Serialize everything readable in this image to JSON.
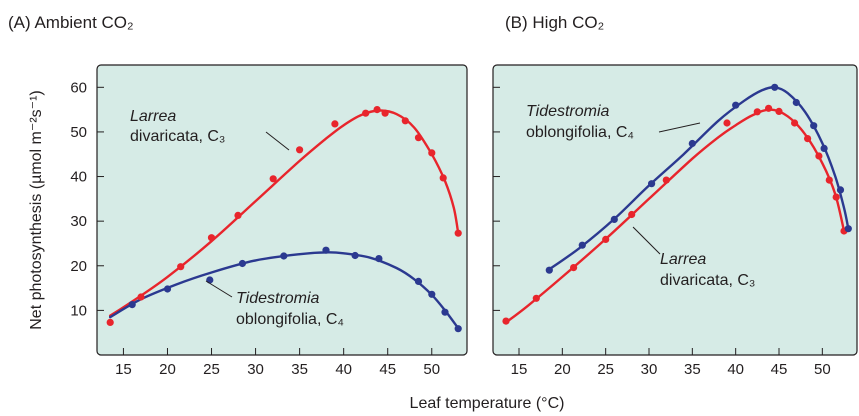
{
  "figure": {
    "y_axis_label": "Net photosynthesis (µmol m⁻²s⁻¹)",
    "x_axis_label": "Leaf temperature (°C)"
  },
  "colors": {
    "c3": "#e8252c",
    "c4": "#2b3990",
    "plot_bg": "#d6ebe6",
    "text": "#231f20"
  },
  "chart_data": [
    {
      "type": "line",
      "panel": "A",
      "title": "(A) Ambient CO₂",
      "xlabel": "Leaf temperature (°C)",
      "ylabel": "Net photosynthesis (µmol m⁻²s⁻¹)",
      "xlim": [
        12,
        54
      ],
      "ylim": [
        0,
        65
      ],
      "xticks": [
        15,
        20,
        25,
        30,
        35,
        40,
        45,
        50
      ],
      "yticks": [
        10,
        20,
        30,
        40,
        50,
        60
      ],
      "series": [
        {
          "name": "Larrea divaricata, C₃",
          "label_italic": "Larrea divaricata",
          "label_type": "C₃",
          "color": "c3",
          "points": [
            [
              13.5,
              7.3
            ],
            [
              17,
              13
            ],
            [
              21.5,
              19.8
            ],
            [
              25,
              26.3
            ],
            [
              28,
              31.3
            ],
            [
              32,
              39.5
            ],
            [
              35,
              46
            ],
            [
              39,
              51.8
            ],
            [
              42.5,
              54.2
            ],
            [
              43.8,
              55
            ],
            [
              44.7,
              54.2
            ],
            [
              47,
              52.5
            ],
            [
              48.5,
              48.7
            ],
            [
              50,
              45.3
            ],
            [
              51.3,
              39.7
            ],
            [
              53,
              27.3
            ]
          ],
          "curve": [
            [
              13.5,
              8.8
            ],
            [
              16,
              12
            ],
            [
              20,
              17.5
            ],
            [
              25,
              25.5
            ],
            [
              30,
              34.5
            ],
            [
              35,
              43.5
            ],
            [
              38,
              48.5
            ],
            [
              40,
              51.5
            ],
            [
              42,
              53.8
            ],
            [
              44,
              54.8
            ],
            [
              46,
              54
            ],
            [
              48,
              51
            ],
            [
              50,
              45
            ],
            [
              51.5,
              39
            ],
            [
              52.5,
              33
            ],
            [
              53,
              27.3
            ]
          ]
        },
        {
          "name": "Tidestromia oblongifolia, C₄",
          "label_italic": "Tidestromia oblongifolia",
          "label_type": "C₄",
          "color": "c4",
          "points": [
            [
              16,
              11.3
            ],
            [
              20,
              14.8
            ],
            [
              24.8,
              16.8
            ],
            [
              28.5,
              20.5
            ],
            [
              33.2,
              22.2
            ],
            [
              38,
              23.5
            ],
            [
              41.3,
              22.3
            ],
            [
              44,
              21.6
            ],
            [
              48.5,
              16.5
            ],
            [
              50,
              13.6
            ],
            [
              51.5,
              9.6
            ],
            [
              53,
              5.9
            ]
          ],
          "curve": [
            [
              13.5,
              8.5
            ],
            [
              17,
              12.5
            ],
            [
              21,
              15.8
            ],
            [
              25,
              18.5
            ],
            [
              30,
              21.2
            ],
            [
              35,
              22.6
            ],
            [
              38,
              23
            ],
            [
              40,
              22.8
            ],
            [
              43,
              21.8
            ],
            [
              46,
              19.5
            ],
            [
              48,
              17
            ],
            [
              50,
              13.5
            ],
            [
              51.5,
              10
            ],
            [
              53,
              6
            ]
          ]
        }
      ],
      "annotations": [
        {
          "series": "Larrea divaricata, C₃",
          "lines": [
            "Larrea",
            "divaricata, C₃"
          ]
        },
        {
          "series": "Tidestromia oblongifolia, C₄",
          "lines": [
            "Tidestromia",
            "oblongifolia, C₄"
          ]
        }
      ],
      "grid": false
    },
    {
      "type": "line",
      "panel": "B",
      "title": "(B) High CO₂",
      "xlabel": "Leaf temperature (°C)",
      "ylabel": "Net photosynthesis (µmol m⁻²s⁻¹)",
      "xlim": [
        12,
        54
      ],
      "ylim": [
        0,
        65
      ],
      "xticks": [
        15,
        20,
        25,
        30,
        35,
        40,
        45,
        50
      ],
      "yticks": [
        10,
        20,
        30,
        40,
        50,
        60
      ],
      "series": [
        {
          "name": "Larrea divaricata, C₃",
          "label_italic": "Larrea divaricata",
          "label_type": "C₃",
          "color": "c3",
          "points": [
            [
              13.5,
              7.6
            ],
            [
              17,
              12.7
            ],
            [
              21.3,
              19.6
            ],
            [
              25,
              25.9
            ],
            [
              28,
              31.5
            ],
            [
              32,
              39.2
            ],
            [
              39,
              52
            ],
            [
              42.5,
              54.5
            ],
            [
              43.8,
              55.3
            ],
            [
              45,
              54.6
            ],
            [
              46.8,
              52
            ],
            [
              48.3,
              48.5
            ],
            [
              49.6,
              44.6
            ],
            [
              50.8,
              39.2
            ],
            [
              51.6,
              35.4
            ],
            [
              52.5,
              27.8
            ]
          ],
          "curve": [
            [
              13.5,
              7.3
            ],
            [
              16,
              11
            ],
            [
              20,
              17.5
            ],
            [
              25,
              26
            ],
            [
              30,
              35
            ],
            [
              35,
              44
            ],
            [
              38,
              48.8
            ],
            [
              40,
              51.5
            ],
            [
              42,
              53.8
            ],
            [
              44,
              55
            ],
            [
              46,
              53.5
            ],
            [
              48,
              49.5
            ],
            [
              50,
              43
            ],
            [
              51.5,
              36
            ],
            [
              52.5,
              27.8
            ]
          ]
        },
        {
          "name": "Tidestromia oblongifolia, C₄",
          "label_italic": "Tidestromia oblongifolia",
          "label_type": "C₄",
          "color": "c4",
          "points": [
            [
              18.5,
              19
            ],
            [
              22.3,
              24.6
            ],
            [
              26,
              30.4
            ],
            [
              30.3,
              38.4
            ],
            [
              35,
              47.4
            ],
            [
              40,
              56
            ],
            [
              44.5,
              60
            ],
            [
              47,
              56.6
            ],
            [
              49,
              51.4
            ],
            [
              50.2,
              46.3
            ],
            [
              52.1,
              37
            ],
            [
              53,
              28.3
            ]
          ],
          "curve": [
            [
              18.5,
              19.2
            ],
            [
              22,
              24
            ],
            [
              26,
              30.5
            ],
            [
              30,
              38
            ],
            [
              34,
              45
            ],
            [
              38,
              52.5
            ],
            [
              41,
              57
            ],
            [
              43,
              59.3
            ],
            [
              44.5,
              60
            ],
            [
              46,
              58.7
            ],
            [
              48,
              54.5
            ],
            [
              50,
              47.5
            ],
            [
              51.5,
              40
            ],
            [
              52.5,
              33
            ],
            [
              53,
              28.3
            ]
          ]
        }
      ],
      "annotations": [
        {
          "series": "Tidestromia oblongifolia, C₄",
          "lines": [
            "Tidestromia",
            "oblongifolia, C₄"
          ]
        },
        {
          "series": "Larrea divaricata, C₃",
          "lines": [
            "Larrea",
            "divaricata, C₃"
          ]
        }
      ],
      "grid": false
    }
  ]
}
